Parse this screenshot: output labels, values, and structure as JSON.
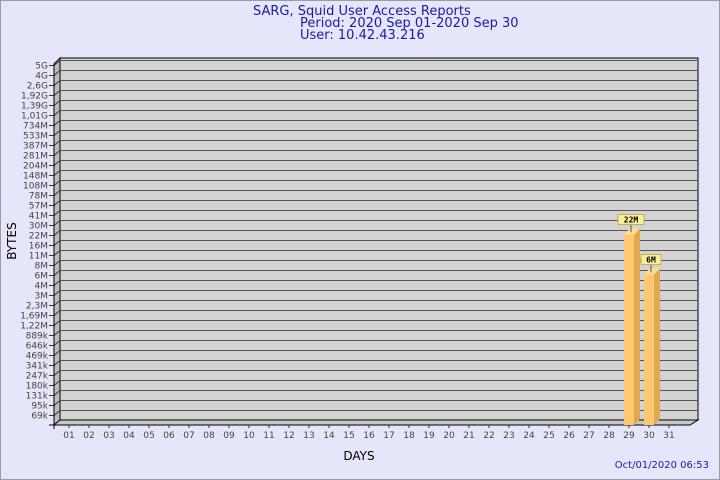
{
  "title": "SARG, Squid User Access Reports",
  "period": "Period: 2020 Sep 01-2020 Sep 30",
  "user": "User: 10.42.43.216",
  "generated": "Oct/01/2020 06:53",
  "colors": {
    "background": "#e6e6fa",
    "wall": "#d3d3d3",
    "bar": "#ffc870",
    "title": "#1a1aa6"
  },
  "chart_data": {
    "type": "bar",
    "xlabel": "DAYS",
    "ylabel": "BYTES",
    "y_scale": "log",
    "y_ticks": [
      "5G",
      "4G",
      "2,6G",
      "1,92G",
      "1,39G",
      "1,01G",
      "734M",
      "533M",
      "387M",
      "281M",
      "204M",
      "148M",
      "108M",
      "78M",
      "57M",
      "41M",
      "30M",
      "22M",
      "16M",
      "11M",
      "8M",
      "6M",
      "4M",
      "3M",
      "2,3M",
      "1,69M",
      "1,22M",
      "889k",
      "646k",
      "469k",
      "341k",
      "247k",
      "180k",
      "131k",
      "95k",
      "69k"
    ],
    "categories": [
      "01",
      "02",
      "03",
      "04",
      "05",
      "06",
      "07",
      "08",
      "09",
      "10",
      "11",
      "12",
      "13",
      "14",
      "15",
      "16",
      "17",
      "18",
      "19",
      "20",
      "21",
      "22",
      "23",
      "24",
      "25",
      "26",
      "27",
      "28",
      "29",
      "30",
      "31"
    ],
    "bars": [
      {
        "day": "29",
        "value": 22000000,
        "label": "22M"
      },
      {
        "day": "30",
        "value": 6000000,
        "label": "6M"
      }
    ],
    "grid": true
  }
}
